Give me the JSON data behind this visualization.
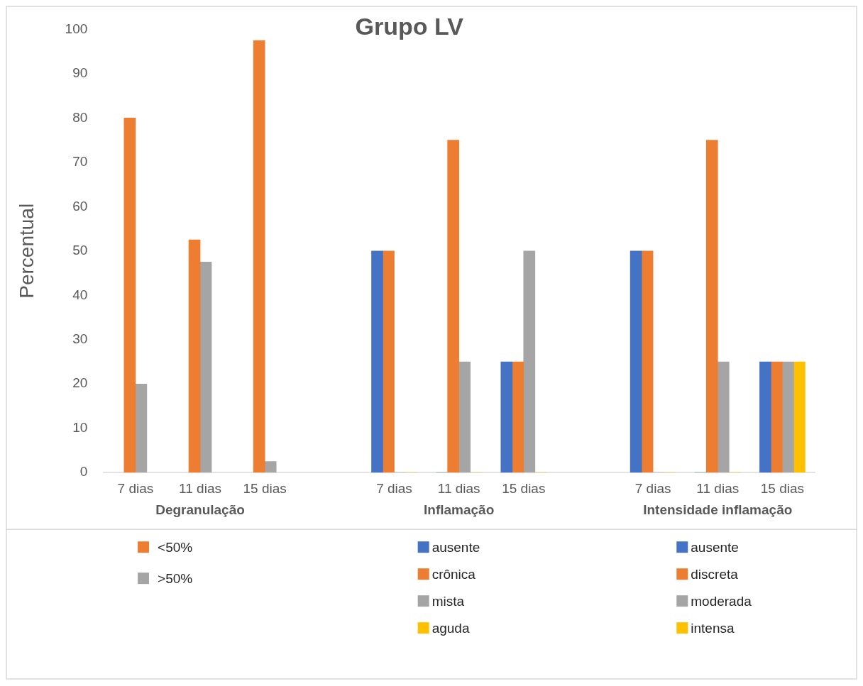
{
  "chart_data": {
    "type": "bar",
    "title": "Grupo LV",
    "ylabel": "Percentual",
    "categories": [
      "7 dias",
      "11 dias",
      "15 dias",
      null,
      "7 dias",
      "11 dias",
      "15 dias",
      null,
      "7 dias",
      "11 dias",
      "15 dias"
    ],
    "annotations": [
      "Degranulação",
      "Inflamação",
      "Intensidade inflamação"
    ],
    "series": [
      {
        "name": "<50%",
        "color": "#ed7d31",
        "values": [
          80,
          52.5,
          97.5,
          null,
          null,
          null,
          null,
          null,
          null,
          null,
          null
        ]
      },
      {
        "name": ">50%",
        "color": "#a5a5a5",
        "values": [
          20,
          47.5,
          2.5,
          null,
          null,
          null,
          null,
          null,
          null,
          null,
          null
        ]
      },
      {
        "name": "ausente",
        "color": "#4472c4",
        "values": [
          null,
          null,
          null,
          null,
          50,
          0,
          25,
          null,
          null,
          null,
          null
        ]
      },
      {
        "name": "crônica",
        "color": "#ed7d31",
        "values": [
          null,
          null,
          null,
          null,
          50,
          75,
          25,
          null,
          null,
          null,
          null
        ]
      },
      {
        "name": "mista",
        "color": "#a5a5a5",
        "values": [
          null,
          null,
          null,
          null,
          0,
          25,
          50,
          null,
          null,
          null,
          null
        ]
      },
      {
        "name": "aguda",
        "color": "#ffc000",
        "values": [
          null,
          null,
          null,
          null,
          0,
          0,
          0,
          null,
          null,
          null,
          null
        ]
      },
      {
        "name": "ausente",
        "color": "#4472c4",
        "values": [
          null,
          null,
          null,
          null,
          null,
          null,
          null,
          null,
          50,
          0,
          25
        ]
      },
      {
        "name": "discreta",
        "color": "#ed7d31",
        "values": [
          null,
          null,
          null,
          null,
          null,
          null,
          null,
          null,
          50,
          75,
          25
        ]
      },
      {
        "name": "moderada",
        "color": "#a5a5a5",
        "values": [
          null,
          null,
          null,
          null,
          null,
          null,
          null,
          null,
          0,
          25,
          25
        ]
      },
      {
        "name": "intensa",
        "color": "#ffc000",
        "values": [
          null,
          null,
          null,
          null,
          null,
          null,
          null,
          null,
          0,
          0,
          25
        ]
      }
    ],
    "ylim": [
      0,
      100
    ],
    "yticks": [
      0,
      10,
      20,
      30,
      40,
      50,
      60,
      70,
      80,
      90,
      100
    ],
    "grid": false,
    "legend": "bottom"
  }
}
